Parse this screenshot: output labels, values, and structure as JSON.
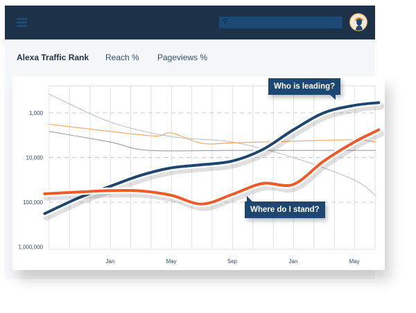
{
  "header": {
    "menu_icon": "hamburger-icon",
    "search_icon": "search-icon",
    "search_placeholder": "",
    "avatar_icon": "user-avatar"
  },
  "tabs": [
    {
      "label": "Alexa Traffic Rank",
      "active": true
    },
    {
      "label": "Reach %",
      "active": false
    },
    {
      "label": "Pageviews %",
      "active": false
    }
  ],
  "colors": {
    "navy": "#1d3149",
    "blue_line": "#1d4770",
    "orange_line": "#f05a28",
    "thin_orange": "#f6aa62",
    "gray": "#8c939b",
    "light_gray": "#b7bec6"
  },
  "chart_data": {
    "type": "line",
    "title": "Alexa Traffic Rank",
    "xlabel": "",
    "ylabel": "",
    "y_scale": "log",
    "y_inverted": true,
    "ylim": [
      1000000,
      250
    ],
    "y_ticks": [
      {
        "value": 1000,
        "label": "1,000"
      },
      {
        "value": 10000,
        "label": "10,000"
      },
      {
        "value": 100000,
        "label": "100,000"
      },
      {
        "value": 1000000,
        "label": "1,000,000"
      }
    ],
    "x_unit": "months since Jan",
    "xlim": [
      -4,
      17.4
    ],
    "x_ticks": [
      {
        "value": 0,
        "label": "Jan"
      },
      {
        "value": 4,
        "label": "May"
      },
      {
        "value": 8,
        "label": "Sep"
      },
      {
        "value": 12,
        "label": "Jan"
      },
      {
        "value": 16,
        "label": "May"
      }
    ],
    "grid": true,
    "series": [
      {
        "name": "light-gray-competitor",
        "x": [
          -4,
          0,
          4,
          8,
          12,
          16,
          17.4
        ],
        "values": [
          380,
          1600,
          3400,
          4500,
          10000,
          32000,
          72000
        ]
      },
      {
        "name": "gray-competitor",
        "x": [
          -4,
          0,
          2.5,
          8,
          12,
          17.4
        ],
        "values": [
          2600,
          4500,
          6900,
          6900,
          6900,
          6900
        ]
      },
      {
        "name": "thin-orange-competitor",
        "x": [
          -4,
          0,
          3,
          4,
          6,
          8,
          12,
          16,
          17.4
        ],
        "values": [
          1800,
          2600,
          3300,
          2800,
          4800,
          4700,
          4300,
          4000,
          4500
        ]
      },
      {
        "name": "leader",
        "x": [
          -4.3,
          -2,
          0,
          2,
          4,
          6,
          8,
          10,
          12,
          14,
          16,
          17.6
        ],
        "values": [
          180000,
          78000,
          44000,
          25000,
          17000,
          14500,
          12000,
          6600,
          2400,
          1000,
          680,
          590
        ]
      },
      {
        "name": "you",
        "x": [
          -4.3,
          -2,
          0,
          2,
          4,
          6,
          8,
          10,
          12,
          14,
          16,
          17.6
        ],
        "values": [
          65000,
          59000,
          55000,
          56000,
          70000,
          110000,
          67000,
          38000,
          40000,
          12000,
          4500,
          2400
        ]
      }
    ],
    "annotations": [
      {
        "text": "Who is leading?",
        "target_series": "leader"
      },
      {
        "text": "Where do I stand?",
        "target_series": "you"
      }
    ]
  }
}
